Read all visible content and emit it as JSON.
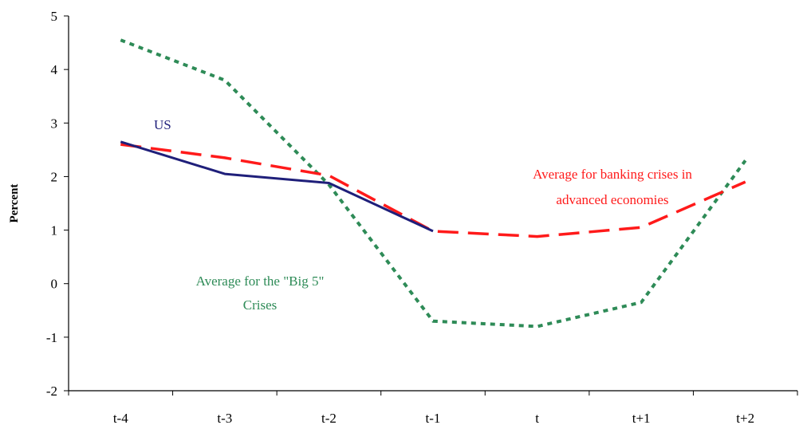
{
  "chart_data": {
    "type": "line",
    "title": "",
    "xlabel": "",
    "ylabel": "Percent",
    "categories": [
      "t-4",
      "t-3",
      "t-2",
      "t-1",
      "t",
      "t+1",
      "t+2"
    ],
    "ylim": [
      -2,
      5
    ],
    "yticks": [
      "5",
      "4",
      "3",
      "2",
      "1",
      "0",
      "-1",
      "-2"
    ],
    "grid": false,
    "series": [
      {
        "name": "US",
        "color": "#1f1f7a",
        "style": "solid",
        "values": [
          2.65,
          2.05,
          1.88,
          0.98,
          null,
          null,
          null
        ]
      },
      {
        "name": "Average for banking crises in advanced economies",
        "color": "#ff1a1a",
        "style": "dashed",
        "values": [
          2.6,
          2.35,
          2.02,
          0.98,
          0.88,
          1.05,
          1.9
        ]
      },
      {
        "name": "Average for the \"Big 5\" Crises",
        "color": "#2e8b57",
        "style": "dotted",
        "values": [
          4.55,
          3.8,
          1.85,
          -0.7,
          -0.8,
          -0.35,
          2.3
        ]
      }
    ],
    "annotations": {
      "us": "US",
      "banking_line1": "Average for banking crises in",
      "banking_line2": "advanced economies",
      "big5_line1": "Average for the \"Big 5\"",
      "big5_line2": "Crises"
    }
  }
}
